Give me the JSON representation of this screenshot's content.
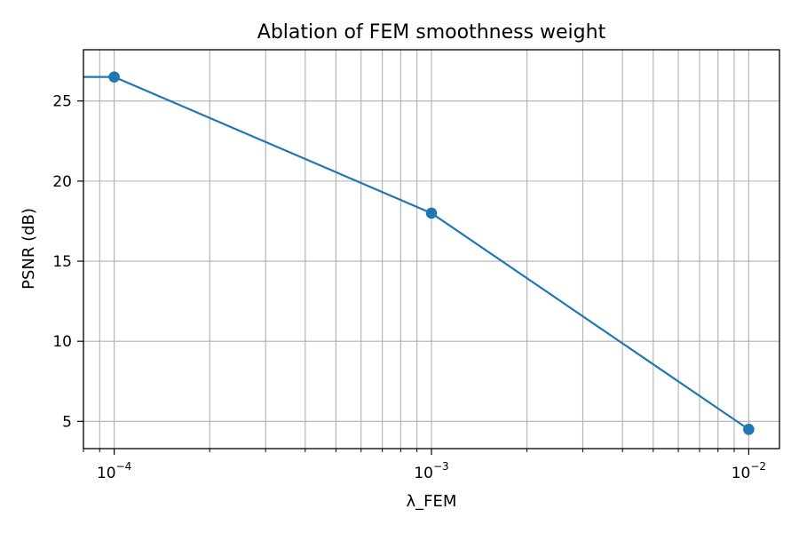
{
  "chart_data": {
    "type": "line",
    "title": "Ablation of FEM smoothness weight",
    "xlabel": "λ_FEM",
    "ylabel": "PSNR (dB)",
    "x_scale": "log",
    "xlim": [
      8e-05,
      0.0125
    ],
    "ylim": [
      3.3,
      28.2
    ],
    "grid": true,
    "grid_minor_x": true,
    "x_ticks": [
      {
        "value": 0.0001,
        "base": "10",
        "exp": "−4"
      },
      {
        "value": 0.001,
        "base": "10",
        "exp": "−3"
      },
      {
        "value": 0.01,
        "base": "10",
        "exp": "−2"
      }
    ],
    "y_ticks": [
      {
        "value": 5,
        "label": "5"
      },
      {
        "value": 10,
        "label": "10"
      },
      {
        "value": 15,
        "label": "15"
      },
      {
        "value": 20,
        "label": "20"
      },
      {
        "value": 25,
        "label": "25"
      }
    ],
    "series": [
      {
        "color": "#1f77b4",
        "marker": "circle",
        "x": [
          0,
          0.0001,
          0.001,
          0.01
        ],
        "y": [
          26.5,
          26.5,
          18.0,
          4.5
        ]
      }
    ]
  }
}
